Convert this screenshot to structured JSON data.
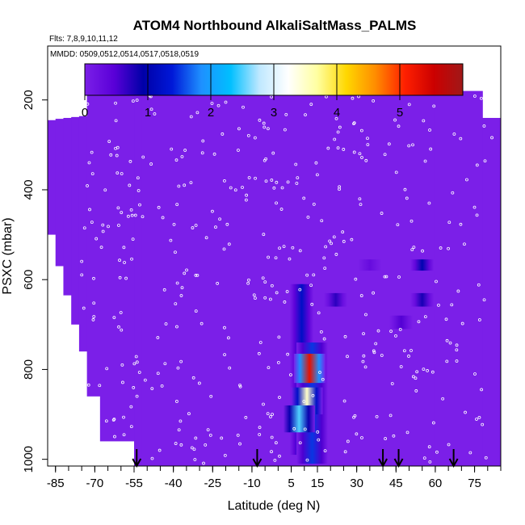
{
  "chart_data": {
    "type": "heatmap",
    "title": "ATOM4 Northbound AlkaliSaltMass_PALMS",
    "subtitle_flights": "Flts: 7,8,9,10,11,12",
    "subtitle_dates": "MMDD: 0509,0512,0514,0517,0518,0519",
    "xlabel": "Latitude (deg N)",
    "ylabel": "PSXC (mbar)",
    "xlim": [
      -88,
      85
    ],
    "ylim": [
      1015,
      80
    ],
    "x_ticks": [
      "-85",
      "-70",
      "-55",
      "-40",
      "-25",
      "-10",
      "5",
      "15",
      "30",
      "45",
      "60",
      "75"
    ],
    "y_ticks": [
      "200",
      "400",
      "600",
      "800",
      "1000"
    ],
    "colorbar": {
      "range": [
        0,
        6
      ],
      "ticks": [
        "0",
        "1",
        "2",
        "3",
        "4",
        "5"
      ],
      "colors": [
        "#7B1FE8",
        "#5A00D8",
        "#0000A8",
        "#0018D8",
        "#1E90FF",
        "#00BFFF",
        "#BFE8FF",
        "#FFFFFF",
        "#FFFFA0",
        "#FFD700",
        "#FF8C00",
        "#FF2000",
        "#CC0000",
        "#A01818"
      ]
    },
    "background_value": 0,
    "features": [
      {
        "lat": 9,
        "p_top": 610,
        "p_bottom": 990,
        "value": 1.2
      },
      {
        "lat": 13,
        "p_top": 740,
        "p_bottom": 1010,
        "value": 1.5
      },
      {
        "lat": 12,
        "p_top": 765,
        "p_bottom": 830,
        "value": 5.3
      },
      {
        "lat": 11,
        "p_top": 840,
        "p_bottom": 900,
        "value": 3.5
      },
      {
        "lat": 8,
        "p_top": 880,
        "p_bottom": 940,
        "value": 2.5
      },
      {
        "lat": 55,
        "p_top": 555,
        "p_bottom": 580,
        "value": 1.0
      },
      {
        "lat": 55,
        "p_top": 630,
        "p_bottom": 660,
        "value": 0.8
      },
      {
        "lat": 22,
        "p_top": 630,
        "p_bottom": 660,
        "value": 0.7
      },
      {
        "lat": 47,
        "p_top": 680,
        "p_bottom": 710,
        "value": 0.5
      },
      {
        "lat": 35,
        "p_top": 555,
        "p_bottom": 580,
        "value": 0.3
      }
    ],
    "profile_markers_lat": [
      -54,
      -8,
      40,
      46,
      67
    ]
  }
}
